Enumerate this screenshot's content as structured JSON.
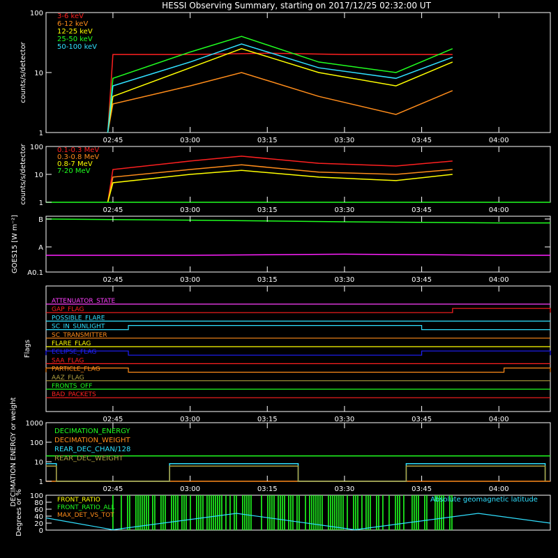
{
  "title": "HESSI Observing Summary, starting on 2017/12/25 02:32:00 UT",
  "time_ticks": [
    "02:45",
    "03:00",
    "03:15",
    "03:30",
    "03:45",
    "04:00"
  ],
  "chart_data": [
    {
      "type": "line",
      "panel": "low-energy",
      "ylabel": "counts/s/detector",
      "yscale": "log",
      "ylim": [
        1,
        100
      ],
      "yticks": [
        "1",
        "10",
        "100"
      ],
      "legend_placement": "top-left",
      "series": [
        {
          "name": "3-6 keV",
          "color": "#ff2020",
          "x": [
            "02:44",
            "02:45",
            "03:00",
            "03:15",
            "03:30",
            "03:45",
            "03:51"
          ],
          "values": [
            1,
            20,
            20,
            21,
            20,
            20,
            20
          ]
        },
        {
          "name": "6-12 keV",
          "color": "#ff8c1a",
          "x": [
            "02:44",
            "02:45",
            "03:00",
            "03:10",
            "03:25",
            "03:40",
            "03:51"
          ],
          "values": [
            1,
            3,
            6,
            10,
            4,
            2,
            5
          ]
        },
        {
          "name": "12-25 keV",
          "color": "#ffff00",
          "x": [
            "02:44",
            "02:45",
            "03:00",
            "03:10",
            "03:25",
            "03:40",
            "03:51"
          ],
          "values": [
            1,
            4,
            12,
            25,
            10,
            6,
            15
          ]
        },
        {
          "name": "25-50 keV",
          "color": "#20ff20",
          "x": [
            "02:44",
            "02:45",
            "03:00",
            "03:10",
            "03:25",
            "03:40",
            "03:51"
          ],
          "values": [
            1,
            8,
            22,
            40,
            15,
            10,
            25
          ]
        },
        {
          "name": "50-100 keV",
          "color": "#30e0ff",
          "x": [
            "02:44",
            "02:45",
            "03:00",
            "03:10",
            "03:25",
            "03:40",
            "03:51"
          ],
          "values": [
            1,
            6,
            15,
            30,
            12,
            8,
            18
          ]
        }
      ]
    },
    {
      "type": "line",
      "panel": "high-energy",
      "ylabel": "counts/s/detector",
      "yscale": "log",
      "ylim": [
        1,
        100
      ],
      "yticks": [
        "1",
        "10",
        "100"
      ],
      "series": [
        {
          "name": "0.1-0.3 MeV",
          "color": "#ff2020",
          "x": [
            "02:44",
            "02:45",
            "03:00",
            "03:10",
            "03:25",
            "03:40",
            "03:51"
          ],
          "values": [
            1,
            15,
            30,
            45,
            25,
            20,
            30
          ]
        },
        {
          "name": "0.3-0.8 MeV",
          "color": "#ff8c1a",
          "x": [
            "02:44",
            "02:45",
            "03:00",
            "03:10",
            "03:25",
            "03:40",
            "03:51"
          ],
          "values": [
            1,
            8,
            15,
            22,
            12,
            10,
            15
          ]
        },
        {
          "name": "0.8-7 MeV",
          "color": "#ffff00",
          "x": [
            "02:44",
            "02:45",
            "03:00",
            "03:10",
            "03:25",
            "03:40",
            "03:51"
          ],
          "values": [
            1,
            5,
            10,
            14,
            8,
            6,
            10
          ]
        },
        {
          "name": "7-20 MeV",
          "color": "#20ff20",
          "x": [
            "02:32",
            "04:10"
          ],
          "values": [
            1,
            1
          ]
        }
      ]
    },
    {
      "type": "line",
      "panel": "goes",
      "ylabel": "GOES15 [W m⁻²]",
      "yticks": [
        "A0.1",
        "A",
        "B"
      ],
      "series": [
        {
          "name": "GOES high",
          "color": "#20ff20",
          "x": [
            "02:32",
            "03:00",
            "03:30",
            "04:00",
            "04:10"
          ],
          "values": [
            0.95,
            0.93,
            0.9,
            0.88,
            0.88
          ]
        },
        {
          "name": "GOES low",
          "color": "#ff20ff",
          "x": [
            "02:32",
            "03:00",
            "03:30",
            "04:00",
            "04:10"
          ],
          "values": [
            0.3,
            0.3,
            0.32,
            0.3,
            0.3
          ]
        }
      ]
    },
    {
      "type": "line",
      "panel": "flags",
      "ylabel": "Flags",
      "flags": [
        {
          "name": "ATTENUATOR_STATE",
          "color": "#ff40ff",
          "toggles": []
        },
        {
          "name": "GAP_FLAG",
          "color": "#ff2020",
          "toggles": [
            {
              "start": "03:51",
              "end": "04:10"
            }
          ]
        },
        {
          "name": "POSSIBLE_FLARE",
          "color": "#30e0ff",
          "toggles": []
        },
        {
          "name": "SC_IN_SUNLIGHT",
          "color": "#30e0ff",
          "toggles": [
            {
              "start": "02:48",
              "end": "03:45"
            }
          ]
        },
        {
          "name": "SC_TRANSMITTER",
          "color": "#ff8c1a",
          "toggles": []
        },
        {
          "name": "FLARE_FLAG",
          "color": "#ffff00",
          "toggles": []
        },
        {
          "name": "ECLIPSE_FLAG",
          "color": "#2020ff",
          "toggles": [
            {
              "start": "02:32",
              "end": "02:48"
            },
            {
              "start": "03:45",
              "end": "04:10"
            }
          ]
        },
        {
          "name": "SAA_FLAG",
          "color": "#ff2020",
          "toggles": []
        },
        {
          "name": "PARTICLE_FLAG",
          "color": "#ff8c1a",
          "toggles": [
            {
              "start": "02:32",
              "end": "02:48"
            },
            {
              "start": "04:01",
              "end": "04:10"
            }
          ]
        },
        {
          "name": "AAZ_FLAG",
          "color": "#b0a040",
          "toggles": []
        },
        {
          "name": "FRONTS_OFF",
          "color": "#20ff20",
          "toggles": []
        },
        {
          "name": "BAD_PACKETS",
          "color": "#ff2020",
          "toggles": []
        }
      ]
    },
    {
      "type": "line",
      "panel": "decimation",
      "ylabel": "DECIMATION ENERGY or weight",
      "yscale": "log",
      "ylim": [
        1,
        1000
      ],
      "yticks": [
        "1",
        "10",
        "100",
        "1000"
      ],
      "series": [
        {
          "name": "DECIMATION_ENERGY",
          "color": "#20ff20",
          "x": [
            "02:32",
            "04:10"
          ],
          "values": [
            20,
            20
          ]
        },
        {
          "name": "DECIMATION_WEIGHT",
          "color": "#ff8c1a",
          "x": [
            "02:32",
            "04:10"
          ],
          "values": [
            1,
            1
          ]
        },
        {
          "name": "REAR_DEC_CHAN/128",
          "color": "#30e0ff",
          "x": [
            "02:32",
            "02:34",
            "02:34",
            "02:56",
            "02:56",
            "03:21",
            "03:21",
            "03:42",
            "03:42",
            "04:09",
            "04:09"
          ],
          "values": [
            8,
            8,
            1,
            1,
            8,
            8,
            1,
            1,
            8,
            8,
            1
          ]
        },
        {
          "name": "REAR_DEC_WEIGHT",
          "color": "#b0a040",
          "x": [
            "02:32",
            "02:34",
            "02:34",
            "02:56",
            "02:56",
            "03:21",
            "03:21",
            "03:42",
            "03:42",
            "04:09",
            "04:09"
          ],
          "values": [
            6,
            6,
            1,
            1,
            6,
            6,
            1,
            1,
            6,
            6,
            1
          ]
        }
      ]
    },
    {
      "type": "line",
      "panel": "ratios",
      "ylabel": "Degrees or %",
      "ylim": [
        0,
        100
      ],
      "yticks": [
        "0",
        "20",
        "40",
        "60",
        "80",
        "100"
      ],
      "series": [
        {
          "name": "FRONT_RATIO",
          "color": "#ffff00",
          "x": [],
          "values": []
        },
        {
          "name": "FRONT_RATIO_ALL",
          "color": "#20ff20",
          "x": [
            "02:45",
            "03:51"
          ],
          "values": [
            0,
            100
          ]
        },
        {
          "name": "MAX_DET_VS_TOT",
          "color": "#ff8c1a",
          "x": [],
          "values": []
        },
        {
          "name": "Absolute geomagnetic latitude",
          "color": "#30e0ff",
          "x": [
            "02:32",
            "02:45",
            "03:09",
            "03:32",
            "03:56",
            "04:10"
          ],
          "values": [
            35,
            1,
            48,
            1,
            48,
            20
          ]
        }
      ]
    }
  ]
}
